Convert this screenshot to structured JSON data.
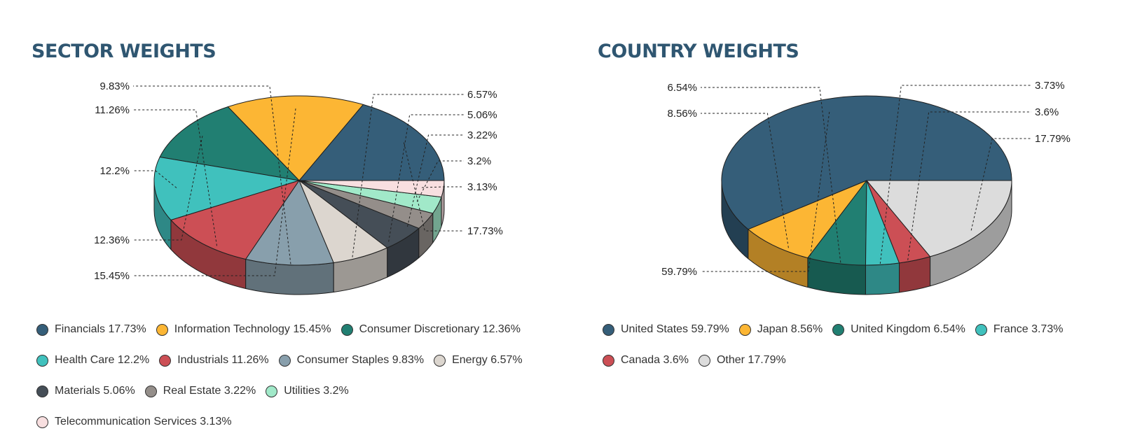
{
  "chart_data": [
    {
      "type": "pie",
      "title": "SECTOR WEIGHTS",
      "slices": [
        {
          "label": "Financials",
          "value": 17.73,
          "value_label": "17.73%",
          "legend": "Financials 17.73%",
          "color": "#355e79",
          "side": "#233f52"
        },
        {
          "label": "Information Technology",
          "value": 15.45,
          "value_label": "15.45%",
          "legend": "Information Technology 15.45%",
          "color": "#fcb634",
          "side": "#b38025"
        },
        {
          "label": "Consumer Discretionary",
          "value": 12.36,
          "value_label": "12.36%",
          "legend": "Consumer Discretionary 12.36%",
          "color": "#217f72",
          "side": "#175a50"
        },
        {
          "label": "Health Care",
          "value": 12.2,
          "value_label": "12.2%",
          "legend": "Health Care 12.2%",
          "color": "#40c1bd",
          "side": "#2e8886"
        },
        {
          "label": "Industrials",
          "value": 11.26,
          "value_label": "11.26%",
          "legend": "Industrials 11.26%",
          "color": "#cc4f55",
          "side": "#91383c"
        },
        {
          "label": "Consumer Staples",
          "value": 9.83,
          "value_label": "9.83%",
          "legend": "Consumer Staples 9.83%",
          "color": "#889fac",
          "side": "#61717a"
        },
        {
          "label": "Energy",
          "value": 6.57,
          "value_label": "6.57%",
          "legend": "Energy 6.57%",
          "color": "#dcd6cf",
          "side": "#9c9893"
        },
        {
          "label": "Materials",
          "value": 5.06,
          "value_label": "5.06%",
          "legend": "Materials 5.06%",
          "color": "#454e57",
          "side": "#31373e"
        },
        {
          "label": "Real Estate",
          "value": 3.22,
          "value_label": "3.22%",
          "legend": "Real Estate 3.22%",
          "color": "#948e8a",
          "side": "#696562"
        },
        {
          "label": "Utilities",
          "value": 3.2,
          "value_label": "3.2%",
          "legend": "Utilities 3.2%",
          "color": "#a1e9c9",
          "side": "#72a58f"
        },
        {
          "label": "Telecommunication Services",
          "value": 3.13,
          "value_label": "3.13%",
          "legend": "Telecommunication Services 3.13%",
          "color": "#f8dfe0",
          "side": "#b09e9f"
        }
      ],
      "legend_rows": [
        [
          0,
          1,
          2
        ],
        [
          3,
          4,
          5,
          6
        ],
        [
          7,
          8,
          9
        ],
        [
          10
        ]
      ]
    },
    {
      "type": "pie",
      "title": "COUNTRY WEIGHTS",
      "slices": [
        {
          "label": "United States",
          "value": 59.79,
          "value_label": "59.79%",
          "legend": "United States 59.79%",
          "color": "#355e79",
          "side": "#233f52"
        },
        {
          "label": "Japan",
          "value": 8.56,
          "value_label": "8.56%",
          "legend": "Japan 8.56%",
          "color": "#fcb634",
          "side": "#b38025"
        },
        {
          "label": "United Kingdom",
          "value": 6.54,
          "value_label": "6.54%",
          "legend": "United Kingdom 6.54%",
          "color": "#217f72",
          "side": "#175a50"
        },
        {
          "label": "France",
          "value": 3.73,
          "value_label": "3.73%",
          "legend": "France 3.73%",
          "color": "#40c1bd",
          "side": "#2e8886"
        },
        {
          "label": "Canada",
          "value": 3.6,
          "value_label": "3.6%",
          "legend": "Canada 3.6%",
          "color": "#cc4f55",
          "side": "#91383c"
        },
        {
          "label": "Other",
          "value": 17.79,
          "value_label": "17.79%",
          "legend": "Other 17.79%",
          "color": "#dcdcdc",
          "side": "#9d9d9d"
        }
      ],
      "legend_rows": [
        [
          0,
          1,
          2,
          3
        ],
        [
          4,
          5
        ]
      ]
    }
  ]
}
